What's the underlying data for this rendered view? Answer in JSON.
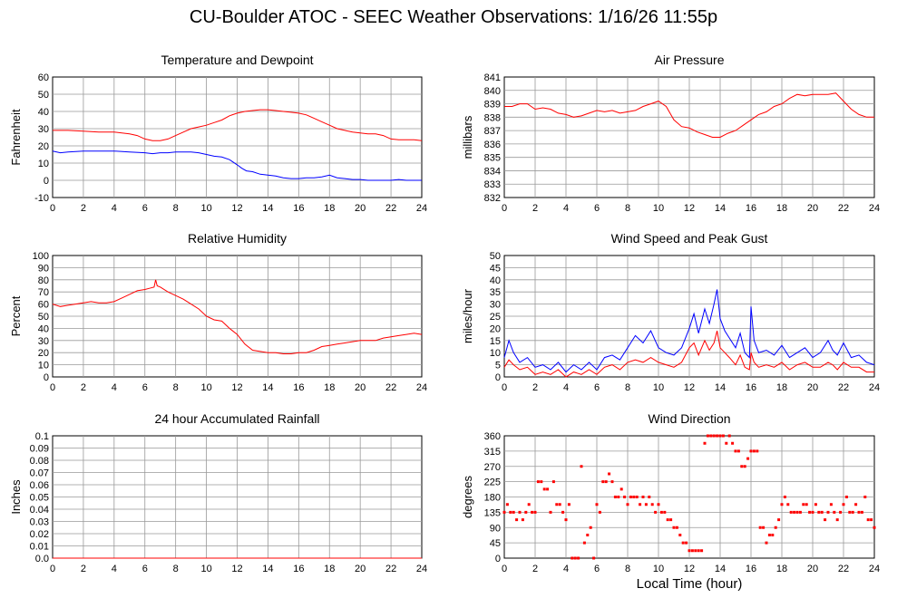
{
  "title": "CU-Boulder ATOC - SEEC Weather Observations: 1/16/26 11:55p",
  "xlabel_bottom": "Local Time (hour)",
  "colors": {
    "red": "#ff0000",
    "blue": "#0000ff",
    "grid": "#999999"
  },
  "chart_data": [
    {
      "type": "line",
      "title": "Temperature and Dewpoint",
      "xlabel": "",
      "ylabel": "Fahrenheit",
      "xlim": [
        0,
        24
      ],
      "ylim": [
        -10,
        60
      ],
      "xticks": [
        0,
        2,
        4,
        6,
        8,
        10,
        12,
        14,
        16,
        18,
        20,
        22,
        24
      ],
      "yticks": [
        -10,
        0,
        10,
        20,
        30,
        40,
        50,
        60
      ],
      "grid": true,
      "series": [
        {
          "color": "#ff0000",
          "x": [
            0,
            1,
            2,
            3,
            4,
            5,
            5.5,
            6,
            6.5,
            7,
            7.5,
            8,
            8.5,
            9,
            9.5,
            10,
            10.5,
            11,
            11.5,
            12,
            12.5,
            13,
            13.5,
            14,
            14.5,
            15,
            15.5,
            16,
            16.5,
            17,
            17.5,
            18,
            18.5,
            19,
            19.5,
            20,
            20.5,
            21,
            21.5,
            22,
            22.5,
            23,
            23.5,
            24
          ],
          "y": [
            29,
            29,
            28.5,
            28,
            28,
            27,
            26,
            24,
            23,
            23,
            24,
            26,
            28,
            30,
            31,
            32,
            33.5,
            35,
            37.5,
            39,
            40,
            40.5,
            41,
            41,
            40.5,
            40,
            39.5,
            39,
            38,
            36,
            34,
            32,
            30,
            29,
            28,
            27.5,
            27,
            27,
            26,
            24,
            23.5,
            23.5,
            23.5,
            23
          ]
        },
        {
          "color": "#0000ff",
          "x": [
            0,
            0.5,
            1,
            2,
            3,
            4,
            5,
            6,
            6.5,
            7,
            7.5,
            8,
            8.5,
            9,
            9.5,
            10,
            10.5,
            11,
            11.5,
            12,
            12.3,
            12.6,
            13,
            13.5,
            14,
            14.5,
            15,
            15.5,
            16,
            16.5,
            17,
            17.5,
            18,
            18.5,
            19,
            19.5,
            20,
            20.5,
            21,
            21.5,
            22,
            22.5,
            23,
            23.5,
            24
          ],
          "y": [
            17,
            16,
            16.5,
            17,
            17,
            17,
            16.5,
            16,
            15.5,
            16,
            16,
            16.5,
            16.5,
            16.5,
            16,
            15,
            14,
            13.5,
            12,
            9,
            7,
            5.5,
            5,
            3.5,
            3,
            2.5,
            1.5,
            1,
            1,
            1.5,
            1.5,
            2,
            3,
            1.5,
            1,
            0.5,
            0.5,
            0,
            0,
            0,
            0,
            0.5,
            0,
            0,
            0
          ]
        }
      ]
    },
    {
      "type": "line",
      "title": "Air Pressure",
      "xlabel": "",
      "ylabel": "millibars",
      "xlim": [
        0,
        24
      ],
      "ylim": [
        832,
        841
      ],
      "xticks": [
        0,
        2,
        4,
        6,
        8,
        10,
        12,
        14,
        16,
        18,
        20,
        22,
        24
      ],
      "yticks": [
        832,
        833,
        834,
        835,
        836,
        837,
        838,
        839,
        840,
        841
      ],
      "grid": true,
      "series": [
        {
          "color": "#ff0000",
          "x": [
            0,
            0.5,
            1,
            1.5,
            2,
            2.5,
            3,
            3.5,
            4,
            4.5,
            5,
            5.5,
            6,
            6.5,
            7,
            7.5,
            8,
            8.5,
            9,
            9.5,
            10,
            10.5,
            11,
            11.5,
            12,
            12.5,
            13,
            13.5,
            14,
            14.5,
            15,
            15.5,
            16,
            16.5,
            17,
            17.5,
            18,
            18.5,
            19,
            19.5,
            20,
            20.5,
            21,
            21.5,
            22,
            22.5,
            23,
            23.5,
            24
          ],
          "y": [
            838.8,
            838.8,
            839,
            839,
            838.6,
            838.7,
            838.6,
            838.3,
            838.2,
            838,
            838.1,
            838.3,
            838.5,
            838.4,
            838.5,
            838.3,
            838.4,
            838.5,
            838.8,
            839,
            839.2,
            838.8,
            837.8,
            837.3,
            837.2,
            836.9,
            836.7,
            836.5,
            836.5,
            836.8,
            837,
            837.4,
            837.8,
            838.2,
            838.4,
            838.8,
            839,
            839.4,
            839.7,
            839.6,
            839.7,
            839.7,
            839.7,
            839.8,
            839.2,
            838.6,
            838.2,
            838,
            838
          ]
        }
      ]
    },
    {
      "type": "line",
      "title": "Relative Humidity",
      "xlabel": "",
      "ylabel": "Percent",
      "xlim": [
        0,
        24
      ],
      "ylim": [
        0,
        100
      ],
      "xticks": [
        0,
        2,
        4,
        6,
        8,
        10,
        12,
        14,
        16,
        18,
        20,
        22,
        24
      ],
      "yticks": [
        0,
        10,
        20,
        30,
        40,
        50,
        60,
        70,
        80,
        90,
        100
      ],
      "grid": true,
      "series": [
        {
          "color": "#ff0000",
          "x": [
            0,
            0.5,
            1,
            1.5,
            2,
            2.5,
            3,
            3.5,
            4,
            4.5,
            5,
            5.5,
            6,
            6.3,
            6.6,
            6.7,
            6.8,
            7,
            7.5,
            8,
            8.5,
            9,
            9.5,
            10,
            10.5,
            11,
            11.5,
            12,
            12.5,
            13,
            13.5,
            14,
            14.5,
            15,
            15.5,
            16,
            16.5,
            17,
            17.5,
            18,
            18.5,
            19,
            19.5,
            20,
            20.5,
            21,
            21.5,
            22,
            22.5,
            23,
            23.5,
            24
          ],
          "y": [
            60,
            58,
            59,
            60,
            61,
            62,
            61,
            61,
            62,
            65,
            68,
            71,
            72,
            73,
            74,
            80,
            75,
            74,
            70,
            67,
            64,
            60,
            56,
            50,
            47,
            46,
            40,
            35,
            27,
            22,
            21,
            20,
            20,
            19,
            19,
            20,
            20,
            22,
            25,
            26,
            27,
            28,
            29,
            30,
            30,
            30,
            32,
            33,
            34,
            35,
            36,
            35
          ]
        }
      ]
    },
    {
      "type": "line",
      "title": "Wind Speed and Peak Gust",
      "xlabel": "",
      "ylabel": "miles/hour",
      "xlim": [
        0,
        24
      ],
      "ylim": [
        0,
        50
      ],
      "xticks": [
        0,
        2,
        4,
        6,
        8,
        10,
        12,
        14,
        16,
        18,
        20,
        22,
        24
      ],
      "yticks": [
        0,
        5,
        10,
        15,
        20,
        25,
        30,
        35,
        40,
        45,
        50
      ],
      "grid": true,
      "series": [
        {
          "color": "#0000ff",
          "x": [
            0,
            0.3,
            0.6,
            1,
            1.5,
            2,
            2.5,
            3,
            3.5,
            4,
            4.5,
            5,
            5.5,
            6,
            6.5,
            7,
            7.5,
            8,
            8.5,
            9,
            9.5,
            10,
            10.5,
            11,
            11.5,
            12,
            12.3,
            12.6,
            13,
            13.3,
            13.6,
            13.8,
            14,
            14.3,
            14.6,
            15,
            15.3,
            15.6,
            15.9,
            16,
            16.2,
            16.5,
            17,
            17.5,
            18,
            18.5,
            19,
            19.5,
            20,
            20.5,
            21,
            21.3,
            21.6,
            22,
            22.5,
            23,
            23.5,
            24
          ],
          "y": [
            8,
            15,
            10,
            6,
            8,
            4,
            5,
            3,
            6,
            2,
            5,
            3,
            6,
            3,
            8,
            9,
            7,
            12,
            17,
            14,
            19,
            12,
            10,
            9,
            12,
            20,
            26,
            18,
            28,
            22,
            30,
            36,
            24,
            19,
            16,
            12,
            18,
            10,
            8,
            29,
            15,
            10,
            11,
            9,
            13,
            8,
            10,
            12,
            8,
            10,
            15,
            11,
            9,
            14,
            8,
            9,
            6,
            5
          ]
        },
        {
          "color": "#ff0000",
          "x": [
            0,
            0.3,
            0.6,
            1,
            1.5,
            2,
            2.5,
            3,
            3.5,
            4,
            4.5,
            5,
            5.5,
            6,
            6.5,
            7,
            7.5,
            8,
            8.5,
            9,
            9.5,
            10,
            10.5,
            11,
            11.5,
            12,
            12.3,
            12.6,
            13,
            13.3,
            13.6,
            13.8,
            14,
            14.3,
            14.6,
            15,
            15.3,
            15.6,
            15.9,
            16,
            16.2,
            16.5,
            17,
            17.5,
            18,
            18.5,
            19,
            19.5,
            20,
            20.5,
            21,
            21.3,
            21.6,
            22,
            22.5,
            23,
            23.5,
            24
          ],
          "y": [
            4,
            7,
            5,
            3,
            4,
            1,
            2,
            1,
            3,
            0,
            2,
            1,
            3,
            1,
            4,
            5,
            3,
            6,
            7,
            6,
            8,
            6,
            5,
            4,
            6,
            12,
            14,
            9,
            15,
            11,
            14,
            19,
            12,
            10,
            8,
            5,
            9,
            4,
            3,
            10,
            6,
            4,
            5,
            4,
            6,
            3,
            5,
            6,
            4,
            4,
            6,
            5,
            3,
            6,
            4,
            4,
            2,
            2
          ]
        }
      ]
    },
    {
      "type": "line",
      "title": "24 hour Accumulated Rainfall",
      "xlabel": "",
      "ylabel": "Inches",
      "xlim": [
        0,
        24
      ],
      "ylim": [
        0,
        0.1
      ],
      "xticks": [
        0,
        2,
        4,
        6,
        8,
        10,
        12,
        14,
        16,
        18,
        20,
        22,
        24
      ],
      "yticks": [
        0.0,
        0.01,
        0.02,
        0.03,
        0.04,
        0.05,
        0.06,
        0.07,
        0.08,
        0.09,
        0.1
      ],
      "ytick_labels": [
        "0.0",
        "0.01",
        "0.02",
        "0.03",
        "0.04",
        "0.05",
        "0.06",
        "0.07",
        "0.08",
        "0.09",
        "0.1"
      ],
      "grid": true,
      "series": [
        {
          "color": "#ff0000",
          "x": [
            0,
            24
          ],
          "y": [
            0,
            0
          ]
        }
      ]
    },
    {
      "type": "scatter",
      "title": "Wind Direction",
      "xlabel": "Local Time (hour)",
      "ylabel": "degrees",
      "xlim": [
        0,
        24
      ],
      "ylim": [
        0,
        360
      ],
      "xticks": [
        0,
        2,
        4,
        6,
        8,
        10,
        12,
        14,
        16,
        18,
        20,
        22,
        24
      ],
      "yticks": [
        0,
        45,
        90,
        135,
        180,
        225,
        270,
        315,
        360
      ],
      "grid": true,
      "series": [
        {
          "color": "#ff0000",
          "x": [
            0,
            0.2,
            0.4,
            0.6,
            0.8,
            1,
            1.2,
            1.4,
            1.6,
            1.8,
            2,
            2.2,
            2.4,
            2.6,
            2.8,
            3,
            3.2,
            3.4,
            3.6,
            3.8,
            4,
            4.2,
            4.4,
            4.6,
            4.8,
            5,
            5.2,
            5.4,
            5.6,
            5.8,
            6,
            6.2,
            6.4,
            6.6,
            6.8,
            7,
            7.2,
            7.4,
            7.6,
            7.8,
            8,
            8.2,
            8.4,
            8.6,
            8.8,
            9,
            9.2,
            9.4,
            9.6,
            9.8,
            10,
            10.2,
            10.4,
            10.6,
            10.8,
            11,
            11.2,
            11.4,
            11.6,
            11.8,
            12,
            12.2,
            12.4,
            12.6,
            12.8,
            13,
            13.2,
            13.4,
            13.6,
            13.8,
            14,
            14.2,
            14.4,
            14.6,
            14.8,
            15,
            15.2,
            15.4,
            15.6,
            15.8,
            16,
            16.2,
            16.4,
            16.6,
            16.8,
            17,
            17.2,
            17.4,
            17.6,
            17.8,
            18,
            18.2,
            18.4,
            18.6,
            18.8,
            19,
            19.2,
            19.4,
            19.6,
            19.8,
            20,
            20.2,
            20.4,
            20.6,
            20.8,
            21,
            21.2,
            21.4,
            21.6,
            21.8,
            22,
            22.2,
            22.4,
            22.6,
            22.8,
            23,
            23.2,
            23.4,
            23.6,
            23.8,
            24
          ],
          "y": [
            135,
            158,
            135,
            135,
            113,
            135,
            113,
            135,
            158,
            135,
            135,
            225,
            225,
            203,
            203,
            135,
            225,
            158,
            158,
            135,
            113,
            158,
            0,
            0,
            0,
            270,
            45,
            68,
            90,
            0,
            158,
            135,
            225,
            225,
            248,
            225,
            180,
            180,
            203,
            180,
            158,
            180,
            180,
            180,
            158,
            180,
            158,
            180,
            158,
            135,
            158,
            135,
            135,
            113,
            113,
            90,
            90,
            68,
            45,
            45,
            22,
            22,
            22,
            22,
            22,
            338,
            360,
            360,
            360,
            360,
            360,
            360,
            338,
            360,
            338,
            315,
            315,
            270,
            270,
            293,
            315,
            315,
            315,
            90,
            90,
            45,
            68,
            68,
            90,
            113,
            158,
            180,
            158,
            135,
            135,
            135,
            135,
            158,
            158,
            135,
            135,
            158,
            135,
            135,
            113,
            135,
            158,
            135,
            113,
            135,
            158,
            180,
            135,
            135,
            158,
            135,
            135,
            180,
            113,
            113,
            90
          ]
        }
      ]
    }
  ]
}
